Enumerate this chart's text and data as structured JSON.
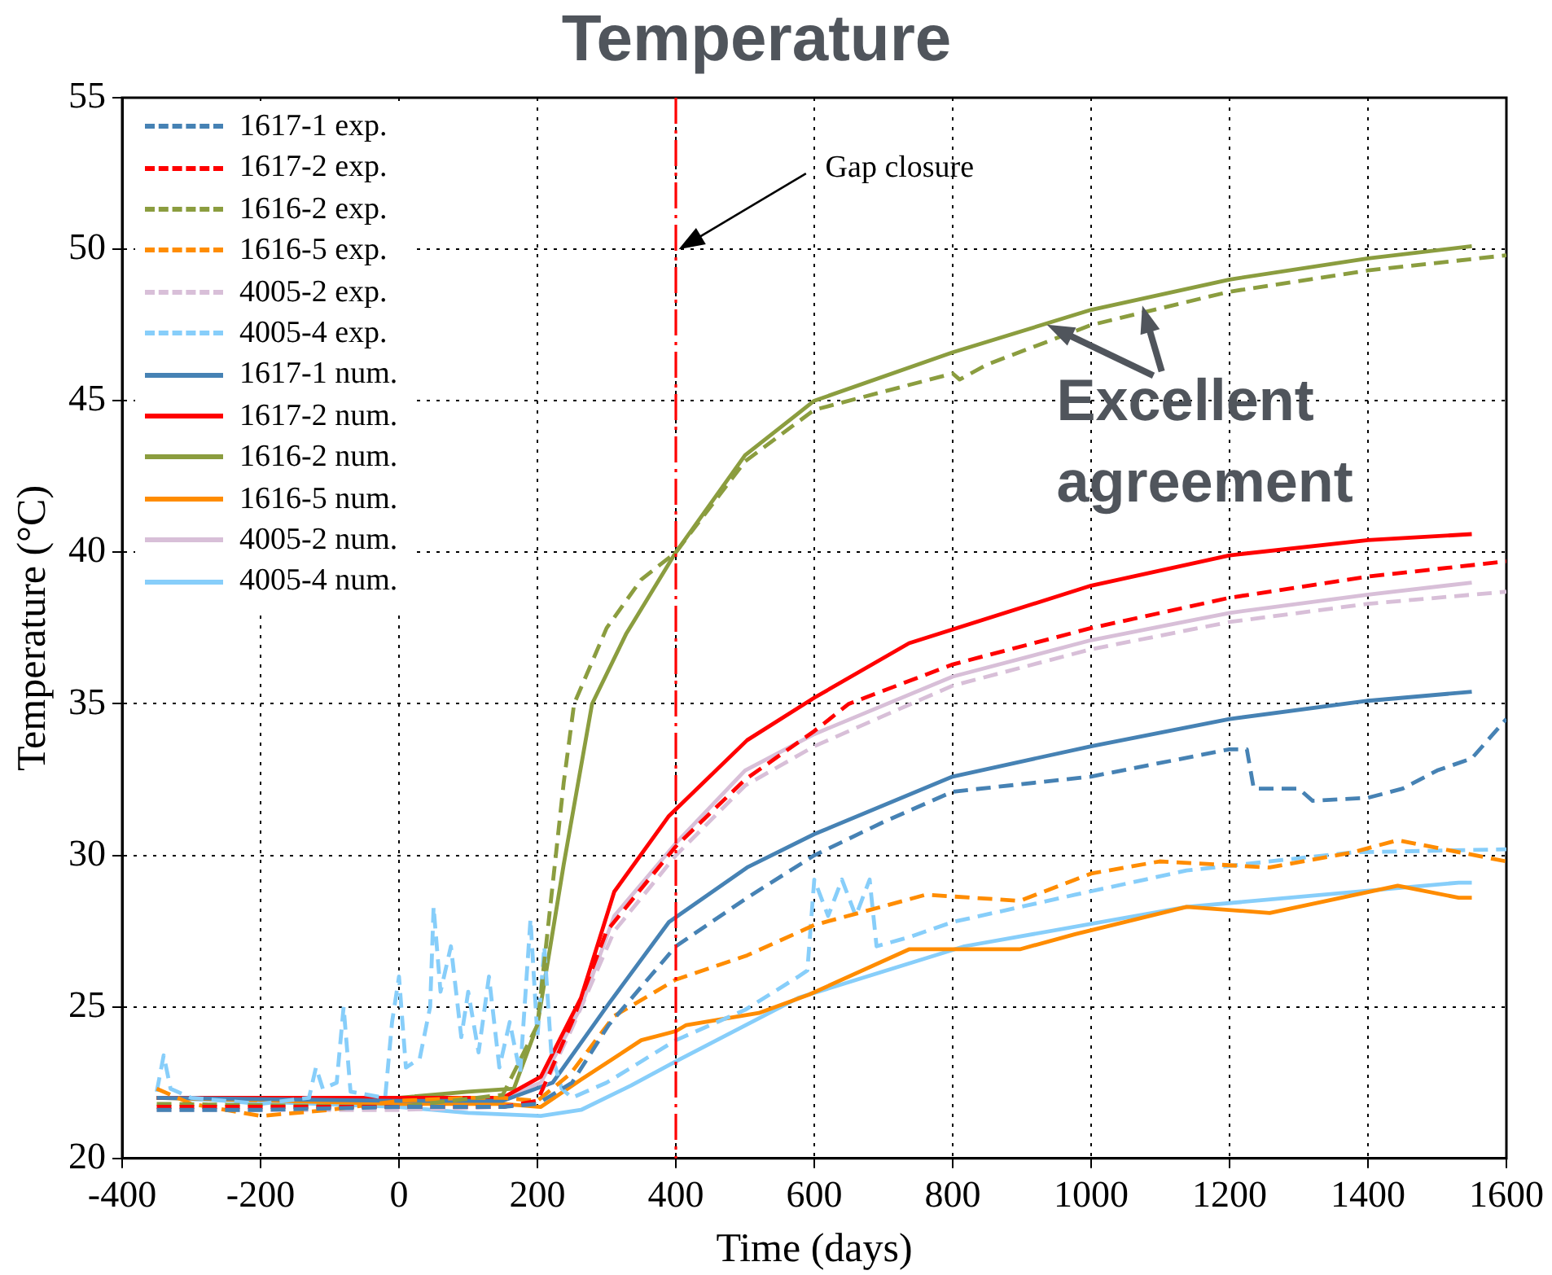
{
  "chart_data": {
    "type": "line",
    "title": "Temperature",
    "xlabel": "Time (days)",
    "ylabel": "Temperature (°C)",
    "xlim": [
      -400,
      1600
    ],
    "xticks": [
      -400,
      -200,
      0,
      200,
      400,
      600,
      800,
      1000,
      1200,
      1400,
      1600
    ],
    "ylim": [
      20,
      55
    ],
    "yticks": [
      20,
      25,
      30,
      35,
      40,
      45,
      50,
      55
    ],
    "grid": true,
    "legend": "top left",
    "ref_lines": [
      {
        "axis": "x",
        "value": 400,
        "color": "#ff0000",
        "line_style": "dashed"
      }
    ],
    "annotations": [
      "Gap closure",
      "Excellent agreement"
    ],
    "series": [
      {
        "name": "1617-1 exp.",
        "color": "#4682b4",
        "line_style": "dashed",
        "x": [
          -350,
          -200,
          0,
          150,
          200,
          250,
          303,
          400,
          503,
          600,
          700,
          800,
          1000,
          1200,
          1225,
          1235,
          1300,
          1320,
          1400,
          1450,
          1500,
          1550,
          1600
        ],
        "values": [
          21.6,
          21.6,
          21.7,
          21.7,
          21.8,
          22.5,
          24.4,
          27.0,
          28.6,
          30.0,
          31.1,
          32.1,
          32.6,
          33.5,
          33.5,
          32.2,
          32.2,
          31.8,
          31.9,
          32.2,
          32.8,
          33.2,
          34.5
        ]
      },
      {
        "name": "1617-2 exp.",
        "color": "#ff0000",
        "line_style": "dashed",
        "x": [
          -350,
          0,
          150,
          200,
          250,
          300,
          400,
          500,
          600,
          650,
          800,
          1000,
          1200,
          1400,
          1600
        ],
        "values": [
          21.7,
          21.7,
          21.7,
          21.9,
          24.5,
          27.5,
          30.3,
          32.5,
          34.1,
          35.0,
          36.3,
          37.5,
          38.5,
          39.2,
          39.7
        ]
      },
      {
        "name": "1616-2 exp.",
        "color": "#8b9d3f",
        "line_style": "dashed",
        "x": [
          -350,
          0,
          150,
          200,
          238,
          253,
          300,
          350,
          400,
          500,
          600,
          800,
          810,
          850,
          1000,
          1200,
          1400,
          1600
        ],
        "values": [
          21.8,
          21.7,
          22.1,
          24.4,
          32.4,
          35.0,
          37.5,
          39.1,
          40.0,
          43.0,
          44.7,
          45.9,
          45.7,
          46.2,
          47.5,
          48.6,
          49.3,
          49.8
        ]
      },
      {
        "name": "1616-5 exp.",
        "color": "#ff8c00",
        "line_style": "dashed",
        "x": [
          -350,
          -300,
          -200,
          -100,
          0,
          100,
          150,
          200,
          248,
          311,
          400,
          503,
          600,
          761,
          897,
          1000,
          1099,
          1258,
          1378,
          1443,
          1600
        ],
        "values": [
          22.3,
          21.8,
          21.4,
          21.6,
          21.9,
          22.0,
          22.0,
          21.9,
          22.8,
          24.7,
          25.9,
          26.7,
          27.7,
          28.7,
          28.5,
          29.4,
          29.8,
          29.6,
          30.1,
          30.5,
          29.8
        ]
      },
      {
        "name": "4005-2 exp.",
        "color": "#d8bfd8",
        "line_style": "dashed",
        "x": [
          -350,
          0,
          150,
          200,
          250,
          311,
          400,
          500,
          600,
          800,
          1000,
          1200,
          1400,
          1600
        ],
        "values": [
          21.6,
          21.6,
          21.7,
          21.9,
          24.3,
          27.5,
          30.0,
          32.3,
          33.6,
          35.6,
          36.8,
          37.7,
          38.3,
          38.7
        ]
      },
      {
        "name": "4005-4 exp.",
        "color": "#87cefa",
        "line_style": "dashed",
        "x": [
          -350,
          -340,
          -330,
          -300,
          -200,
          -130,
          -120,
          -110,
          -90,
          -80,
          -70,
          -20,
          -10,
          0,
          10,
          30,
          45,
          50,
          60,
          75,
          90,
          100,
          115,
          130,
          145,
          160,
          175,
          190,
          200,
          210,
          220,
          235,
          250,
          300,
          350,
          400,
          500,
          577,
          590,
          600,
          620,
          640,
          660,
          680,
          690,
          737,
          800,
          977,
          1138,
          1378,
          1600
        ],
        "values": [
          22.2,
          23.4,
          22.3,
          22.0,
          21.8,
          22.0,
          23.0,
          22.3,
          22.5,
          25.0,
          22.2,
          22.0,
          24.5,
          26.0,
          23.0,
          23.3,
          25.0,
          28.3,
          25.5,
          27.0,
          24.0,
          25.5,
          23.5,
          26.0,
          23.0,
          24.5,
          22.8,
          27.9,
          24.0,
          27.0,
          23.5,
          22.3,
          22.0,
          22.5,
          23.2,
          23.9,
          24.9,
          26.0,
          26.2,
          29.2,
          28.0,
          29.2,
          28.0,
          29.2,
          27.0,
          27.3,
          27.8,
          28.7,
          29.5,
          30.1,
          30.2
        ]
      },
      {
        "name": "1617-1 num.",
        "color": "#4682b4",
        "line_style": "solid",
        "x": [
          -350,
          0,
          150,
          222,
          303,
          390,
          503,
          600,
          800,
          1000,
          1200,
          1400,
          1550
        ],
        "values": [
          22.0,
          21.9,
          21.9,
          22.5,
          25.1,
          27.8,
          29.6,
          30.7,
          32.6,
          33.6,
          34.5,
          35.1,
          35.4
        ]
      },
      {
        "name": "1617-2 num.",
        "color": "#ff0000",
        "line_style": "solid",
        "x": [
          -350,
          0,
          150,
          205,
          263,
          311,
          390,
          503,
          600,
          737,
          1000,
          1200,
          1400,
          1550
        ],
        "values": [
          22.0,
          22.0,
          22.0,
          22.7,
          25.3,
          28.8,
          31.3,
          33.8,
          35.2,
          37.0,
          38.9,
          39.9,
          40.4,
          40.6
        ]
      },
      {
        "name": "1616-2 num.",
        "color": "#8b9d3f",
        "line_style": "solid",
        "x": [
          -350,
          0,
          100,
          166,
          200,
          238,
          279,
          328,
          400,
          500,
          600,
          800,
          1000,
          1200,
          1400,
          1550
        ],
        "values": [
          22.0,
          22.0,
          22.2,
          22.3,
          24.4,
          29.7,
          35.0,
          37.3,
          40.0,
          43.2,
          45.0,
          46.6,
          48.0,
          49.0,
          49.7,
          50.1
        ]
      },
      {
        "name": "1616-5 num.",
        "color": "#ff8c00",
        "line_style": "solid",
        "x": [
          -350,
          0,
          150,
          205,
          263,
          350,
          400,
          415,
          520,
          592,
          737,
          817,
          897,
          977,
          1138,
          1258,
          1443,
          1531,
          1550
        ],
        "values": [
          22.0,
          21.8,
          21.8,
          21.7,
          22.6,
          23.9,
          24.2,
          24.4,
          24.8,
          25.4,
          26.9,
          26.9,
          26.9,
          27.4,
          28.3,
          28.1,
          29.0,
          28.6,
          28.6
        ]
      },
      {
        "name": "4005-2 num.",
        "color": "#d8bfd8",
        "line_style": "solid",
        "x": [
          -350,
          0,
          150,
          205,
          263,
          311,
          400,
          500,
          600,
          800,
          1000,
          1200,
          1400,
          1550
        ],
        "values": [
          22.0,
          22.0,
          22.0,
          22.5,
          25.0,
          28.0,
          30.4,
          32.8,
          34.0,
          35.9,
          37.1,
          38.0,
          38.6,
          39.0
        ]
      },
      {
        "name": "4005-4 num.",
        "color": "#87cefa",
        "line_style": "solid",
        "x": [
          -350,
          0,
          100,
          205,
          263,
          335,
          400,
          577,
          817,
          1138,
          1531,
          1550
        ],
        "values": [
          22.0,
          21.7,
          21.5,
          21.4,
          21.6,
          22.4,
          23.2,
          25.3,
          27.0,
          28.3,
          29.1,
          29.1
        ]
      }
    ]
  }
}
